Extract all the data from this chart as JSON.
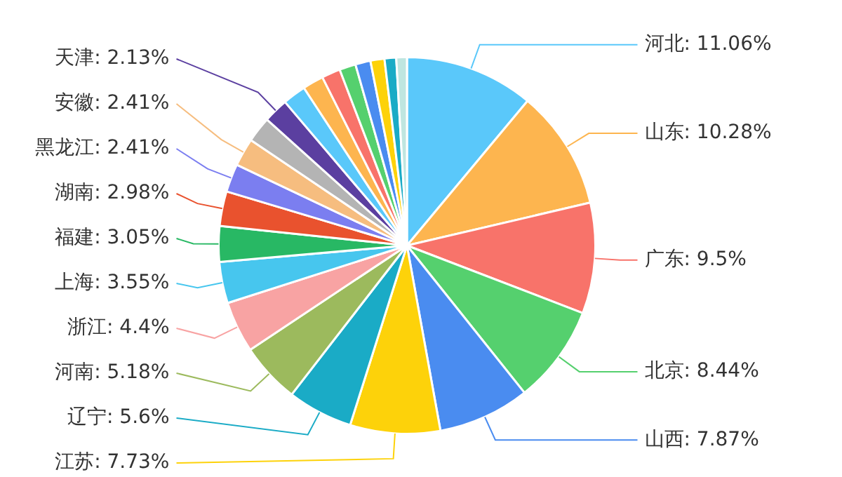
{
  "chart_data": {
    "type": "pie",
    "categories": [
      "河北",
      "山东",
      "广东",
      "北京",
      "山西",
      "江苏",
      "辽宁",
      "河南",
      "浙江",
      "上海",
      "福建",
      "湖南",
      "黑龙江",
      "安徽",
      null,
      "天津",
      null,
      null,
      null,
      null,
      null,
      null,
      null,
      null
    ],
    "values": [
      11.06,
      10.28,
      9.5,
      8.44,
      7.87,
      7.73,
      5.6,
      5.18,
      4.4,
      3.55,
      3.05,
      2.98,
      2.41,
      2.41,
      2.2,
      2.13,
      2.0,
      1.8,
      1.6,
      1.4,
      1.3,
      1.2,
      1.0,
      0.91
    ],
    "value_labels": [
      "11.06%",
      "10.28%",
      "9.5%",
      "8.44%",
      "7.87%",
      "7.73%",
      "5.6%",
      "5.18%",
      "4.4%",
      "3.55%",
      "3.05%",
      "2.98%",
      "2.41%",
      "2.41%",
      null,
      "2.13%",
      null,
      null,
      null,
      null,
      null,
      null,
      null,
      null
    ],
    "colors": [
      "#5ac8fa",
      "#fdb54f",
      "#f8736a",
      "#55d06e",
      "#4a8cf0",
      "#fdd20a",
      "#1aabc6",
      "#9cba5d",
      "#f8a3a3",
      "#47c6ee",
      "#28b864",
      "#e9522e",
      "#7b7ef0",
      "#f6bd7f",
      "#b4b4b4",
      "#5b3fa0",
      "#5ac8fa",
      "#fdb54f",
      "#f8736a",
      "#55d06e",
      "#4a8cf0",
      "#fdd20a",
      "#1aabc6",
      "#bfe6e0"
    ],
    "legend": false
  }
}
